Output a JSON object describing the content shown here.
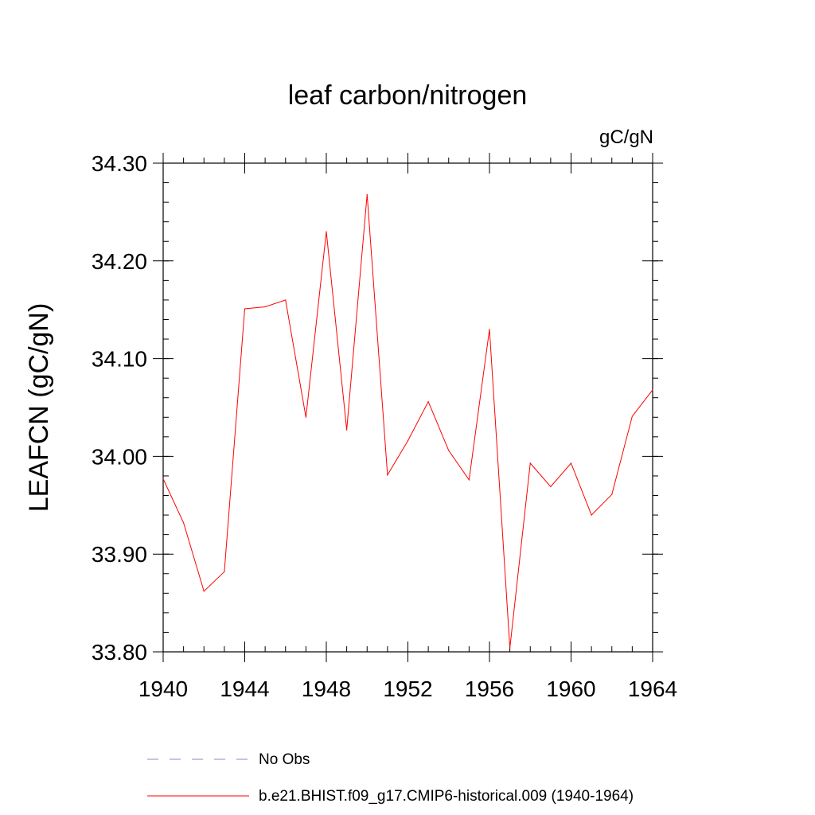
{
  "chart_data": {
    "type": "line",
    "title": "leaf carbon/nitrogen",
    "units": "gC/gN",
    "ylabel": "LEAFCN  (gC/gN)",
    "xlabel": "",
    "xlim": [
      1940,
      1964
    ],
    "ylim": [
      33.8,
      34.3
    ],
    "x_major_ticks": [
      1940,
      1944,
      1948,
      1952,
      1956,
      1960,
      1964
    ],
    "x_tick_labels": [
      "1940",
      "1944",
      "1948",
      "1952",
      "1956",
      "1960",
      "1964"
    ],
    "y_major_ticks": [
      33.8,
      33.9,
      34.0,
      34.1,
      34.2,
      34.3
    ],
    "y_tick_labels": [
      "33.80",
      "33.90",
      "34.00",
      "34.10",
      "34.20",
      "34.30"
    ],
    "x_minor_step": 1,
    "y_minor_step": 0.02,
    "x": [
      1940,
      1941,
      1942,
      1943,
      1944,
      1945,
      1946,
      1947,
      1948,
      1949,
      1950,
      1951,
      1952,
      1953,
      1954,
      1955,
      1956,
      1957,
      1958,
      1959,
      1960,
      1961,
      1962,
      1963,
      1964
    ],
    "series": [
      {
        "name": "b.e21.BHIST.f09_g17.CMIP6-historical.009 (1940-1964)",
        "color": "#ff0000",
        "dash": "solid",
        "values": [
          33.977,
          33.932,
          33.862,
          33.882,
          34.151,
          34.153,
          34.16,
          34.04,
          34.23,
          34.027,
          34.268,
          33.981,
          34.016,
          34.056,
          34.006,
          33.976,
          34.13,
          33.804,
          33.993,
          33.969,
          33.993,
          33.94,
          33.961,
          34.041,
          34.068
        ]
      }
    ],
    "legend": [
      {
        "label": "No Obs",
        "color": "#8888cc",
        "dash": "dashed"
      },
      {
        "label": "b.e21.BHIST.f09_g17.CMIP6-historical.009 (1940-1964)",
        "color": "#ff0000",
        "dash": "solid"
      }
    ],
    "grid": false
  }
}
